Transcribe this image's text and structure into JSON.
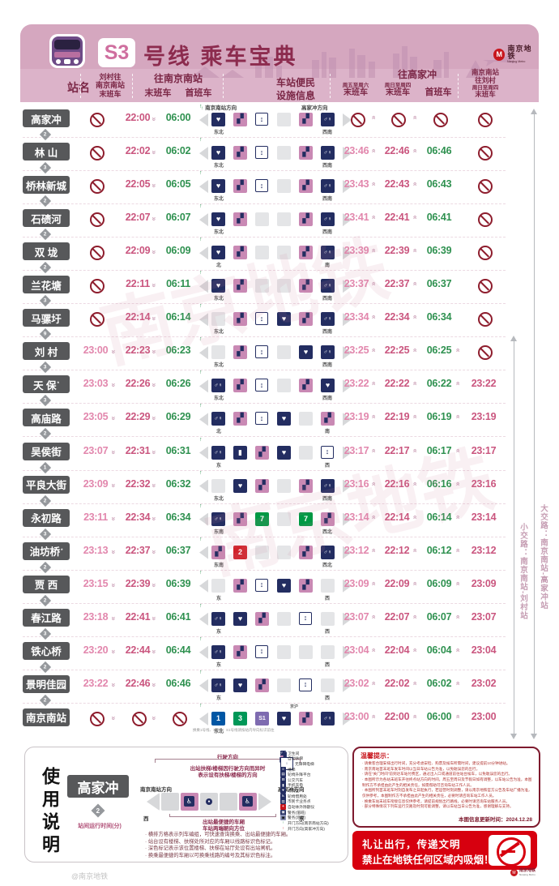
{
  "header": {
    "line_badge": "S3",
    "title_suffix": "号线 乘车宝典",
    "logo_cn": "南京地铁",
    "logo_en": "Nanjing Metro"
  },
  "colheads": {
    "station": "站名",
    "c1_l1": "刘村往",
    "c1_l2": "南京南站",
    "c1_l3": "末班车",
    "group_left": "往南京南站",
    "last": "末班车",
    "first": "首班车",
    "fac_l1": "车站便民",
    "fac_l2": "设施信息",
    "c4_s": "周五至周六",
    "c4": "末班车",
    "group_right": "往高家冲",
    "c5_s": "周日至周四",
    "c5": "末班车",
    "c6": "首班车",
    "c7_l1": "南京南站",
    "c7_l2": "往刘村",
    "c7_s": "周日至周四",
    "c7_l3": "末班车"
  },
  "direction_labels": {
    "left": "南京南站方向",
    "right": "高家冲方向"
  },
  "rows": [
    {
      "name": "高家冲",
      "gap": "2",
      "note": false,
      "t": [
        "X",
        "22:00",
        "06:00",
        "X",
        "X",
        "X",
        "X"
      ],
      "dir": [
        "东北",
        "西南"
      ],
      "icons": [
        "heart",
        "esc",
        "elev",
        "blank",
        "esc",
        "wc"
      ]
    },
    {
      "name": "林 山",
      "gap": "3",
      "note": false,
      "t": [
        "X",
        "22:02",
        "06:02",
        "23:46",
        "22:46",
        "06:46",
        "X"
      ],
      "dir": [
        "东北",
        "西南"
      ],
      "icons": [
        "heart",
        "esc",
        "elev",
        "blank",
        "esc",
        "wc"
      ]
    },
    {
      "name": "桥林新城",
      "gap": "2",
      "note": false,
      "t": [
        "X",
        "22:05",
        "06:05",
        "23:43",
        "22:43",
        "06:43",
        "X"
      ],
      "dir": [
        "东北",
        "西南"
      ],
      "icons": [
        "heart",
        "esc",
        "elev",
        "blank",
        "esc",
        "wc"
      ]
    },
    {
      "name": "石碛河",
      "gap": "2",
      "note": false,
      "t": [
        "X",
        "22:07",
        "06:07",
        "23:41",
        "22:41",
        "06:41",
        "X"
      ],
      "dir": [
        "东北",
        "西南"
      ],
      "icons": [
        "heart",
        "esc",
        "blank",
        "blank",
        "esc",
        "wc"
      ]
    },
    {
      "name": "双 垅",
      "gap": "2",
      "note": false,
      "t": [
        "X",
        "22:09",
        "06:09",
        "23:39",
        "22:39",
        "06:39",
        "X"
      ],
      "dir": [
        "北",
        "南"
      ],
      "icons": [
        "heart",
        "esc",
        "blank",
        "blank",
        "esc",
        "wc"
      ]
    },
    {
      "name": "兰花塘",
      "gap": "3",
      "note": false,
      "t": [
        "X",
        "22:11",
        "06:11",
        "23:37",
        "22:37",
        "06:37",
        "X"
      ],
      "dir": [
        "东北",
        "西南"
      ],
      "icons": [
        "heart",
        "esc",
        "blank",
        "blank",
        "esc",
        "wc"
      ]
    },
    {
      "name": "马骡圩",
      "gap": "9",
      "note": false,
      "t": [
        "X",
        "22:14",
        "06:14",
        "23:34",
        "22:34",
        "06:34",
        "X"
      ],
      "dir": [
        "东北",
        "西南"
      ],
      "icons": [
        "blank",
        "esc",
        "elev",
        "heart",
        "esc",
        "wc"
      ]
    },
    {
      "name": "刘 村",
      "gap": "3",
      "note": false,
      "t": [
        "23:00",
        "22:23",
        "06:23",
        "23:25",
        "22:25",
        "06:25",
        "X"
      ],
      "dir": [
        "东北",
        "西南"
      ],
      "icons": [
        "blank",
        "esc",
        "elev",
        "blank",
        "heart",
        "wc"
      ]
    },
    {
      "name": "天 保",
      "gap": "3",
      "note": true,
      "t": [
        "23:03",
        "22:26",
        "06:26",
        "23:22",
        "22:22",
        "06:22",
        "23:22"
      ],
      "dir": [
        "东北",
        "西南"
      ],
      "icons": [
        "wc",
        "esc",
        "elev",
        "blank",
        "esc",
        "heart"
      ]
    },
    {
      "name": "高庙路",
      "gap": "2",
      "note": false,
      "t": [
        "23:05",
        "22:29",
        "06:29",
        "23:19",
        "22:19",
        "06:19",
        "23:19"
      ],
      "dir": [
        "北",
        "南"
      ],
      "icons": [
        "wc",
        "esc",
        "elev",
        "heart",
        "blank",
        "esc"
      ]
    },
    {
      "name": "吴侯街",
      "gap": "1",
      "note": false,
      "t": [
        "23:07",
        "22:31",
        "06:31",
        "23:17",
        "22:17",
        "06:17",
        "23:17"
      ],
      "dir": [
        "东",
        "西"
      ],
      "icons": [
        "wc",
        "charge",
        "esc",
        "heart",
        "blank",
        "elev"
      ]
    },
    {
      "name": "平良大街",
      "gap": "2",
      "note": false,
      "t": [
        "23:09",
        "22:32",
        "06:32",
        "23:16",
        "22:16",
        "06:16",
        "23:16"
      ],
      "dir": [
        "东北",
        "西南"
      ],
      "icons": [
        "blank",
        "heart",
        "esc",
        "blank",
        "esc",
        "wc"
      ]
    },
    {
      "name": "永初路",
      "gap": "3",
      "note": false,
      "t": [
        "23:11",
        "22:34",
        "06:34",
        "23:14",
        "22:14",
        "06:14",
        "23:14"
      ],
      "dir": [
        "东南",
        "西北"
      ],
      "icons": [
        "wc",
        "esc",
        "l7",
        "blank",
        "l7",
        "esc"
      ]
    },
    {
      "name": "油坊桥",
      "gap": "2",
      "note": true,
      "t": [
        "23:13",
        "22:37",
        "06:37",
        "23:12",
        "22:12",
        "06:12",
        "23:12"
      ],
      "dir": [
        "东南",
        "西北"
      ],
      "icons": [
        "esc",
        "l2",
        "blank",
        "blank",
        "esc",
        "wc"
      ]
    },
    {
      "name": "贾 西",
      "gap": "2",
      "note": false,
      "t": [
        "23:15",
        "22:39",
        "06:39",
        "23:09",
        "22:09",
        "06:09",
        "23:09"
      ],
      "dir": [
        "东",
        "西"
      ],
      "icons": [
        "blank",
        "esc",
        "elev",
        "heart",
        "esc",
        "blank"
      ]
    },
    {
      "name": "春江路",
      "gap": "3",
      "note": false,
      "t": [
        "23:18",
        "22:41",
        "06:41",
        "23:07",
        "22:07",
        "06:07",
        "23:07"
      ],
      "dir": [
        "东",
        "西"
      ],
      "icons": [
        "wc",
        "heart",
        "esc",
        "blank",
        "elev",
        "blank"
      ]
    },
    {
      "name": "铁心桥",
      "gap": "2",
      "note": false,
      "t": [
        "23:20",
        "22:44",
        "06:44",
        "23:04",
        "22:04",
        "06:04",
        "23:04"
      ],
      "dir": [
        "东",
        "西"
      ],
      "icons": [
        "wc",
        "esc",
        "elev",
        "blank",
        "blank",
        "blank"
      ]
    },
    {
      "name": "景明佳园",
      "gap": "2",
      "note": false,
      "t": [
        "23:22",
        "22:46",
        "06:46",
        "23:02",
        "22:02",
        "06:02",
        "23:02"
      ],
      "dir": [
        "东",
        "西"
      ],
      "icons": [
        "wc",
        "heart",
        "esc",
        "blank",
        "elev",
        "blank"
      ]
    },
    {
      "name": "南京南站",
      "gap": "",
      "note": false,
      "t": [
        "X",
        "X",
        "X",
        "23:00",
        "22:00",
        "06:00",
        "23:00"
      ],
      "dir": [
        "东北",
        ""
      ],
      "icons": [
        "l1",
        "l3",
        "ls1",
        "heart",
        "esc",
        "wc"
      ],
      "top_right": "京沪",
      "fnote": "换乘1号线、3号线、S1号线请按站内导向标识前往"
    }
  ],
  "route_arrows": {
    "inner": "小交路：南京南站-刘村站",
    "outer": "大交路：南京南站-高家冲站"
  },
  "usage": {
    "title": "使用说明",
    "sample_station": "高家冲",
    "sample_gap": "2",
    "gap_label": "站间运行时间(分)",
    "dir_left": "南京南站方向",
    "dir_right": "高家冲方向",
    "west": "西",
    "east": "东",
    "ann_top": "行驶方向",
    "ann_mid1": "出站扶梯/楼梯因行驶方向而异时",
    "ann_mid2": "表示设有扶梯/楼梯的方向",
    "ann_car": "出站最便捷的车厢",
    "ann_end": "车站两端朝向方位",
    "bullets": [
      "· 横排方格表示列车编组，可快速查询换乘、出站最便捷的车厢。",
      "· 站台设有楼梯、扶梯处所对应的车厢以线路标识色标记。",
      "· 深色标记表示该位置楼梯、扶梯在站厅处设有出站闸机。",
      "· 换乘最便捷的车厢以可换乘线路的编号及其标识色标注。"
    ]
  },
  "legend": {
    "items": [
      {
        "icon": "wc",
        "label": "卫生间"
      },
      {
        "icon": "esc",
        "label": "自动扶梯"
      },
      {
        "icon": "elev",
        "label": "无障碍电梯"
      },
      {
        "icon": "stairs",
        "label": "楼梯"
      },
      {
        "icon": "lift",
        "label": "轮椅升降平台"
      },
      {
        "icon": "bus",
        "label": "公交汽车"
      },
      {
        "icon": "charge",
        "label": "手机充电"
      },
      {
        "icon": "heart",
        "label": "母婴室"
      },
      {
        "icon": "wheel",
        "label": "轮椅借用处"
      },
      {
        "icon": "card",
        "label": "市民卡业务点"
      },
      {
        "icon": "aed",
        "label": "自动体外除颤仪"
      },
      {
        "icon": "police",
        "label": "警务(值班)"
      },
      {
        "icon": "police2",
        "label": "警务(巡逻)"
      },
      {
        "icon": "doorg",
        "label": "开门方向(南京南站方向)"
      },
      {
        "icon": "doorr",
        "label": "开门方向(高家冲方向)"
      }
    ]
  },
  "tips": {
    "title": "温馨提示：",
    "lines": [
      "· 请乘客合理安排出行时间，充分考虑安检、购票及候车所需时间，建议提前10分钟进站。",
      "· 南京南站首末班车发车时间以当日车站公告为准，以免耽误您的出行。",
      "· 请在“关门时间”前到达车站付费区，通过出入口或通道前往站台候车，以免耽误您的出行。",
      "· 本图所示为各站末班车开往终点站方向的时间，周五至周日及节假日如有调整，以车站公告为准，本图制作方不承担由此产生的相关责任，如需帮助可咨询车站工作人员。",
      "· 本图所列首末班车时刻自发布之日起执行，若运营时刻调整，请以南京地铁官方公告及车站广播为准，仅供参考，本图制作方不承担由此产生的相关责任，必要时请咨询车站工作人员。",
      "· 换乘车站末班车衔接信息仅供参考，请提前规划出行路线，必要时请咨询车站服务人员。",
      "· 部分特殊情况下列车运行交路及时刻可能调整，请以车站当日公告为准，感谢理解与支持。"
    ],
    "updated": "本图信息更新时间：2024.12.28"
  },
  "smoke_box": {
    "line1": "礼让出行，传递文明",
    "line2": "禁止在地铁任何区域内吸烟！"
  },
  "watermark": "@南京地铁",
  "colors": {
    "header_bg": "#d5a7bf",
    "band_bg": "#dcb3c9",
    "title_text": "#8c2b4e",
    "station_box": "#57585a",
    "last_train_pink": "#e287ad",
    "last_train_rose": "#ca567f",
    "first_train_green": "#2f9150",
    "no_service_red": "#8e1d2d",
    "escalator_pink": "#c989b4",
    "facility_navy": "#232d61",
    "warning_red": "#d7000f"
  }
}
